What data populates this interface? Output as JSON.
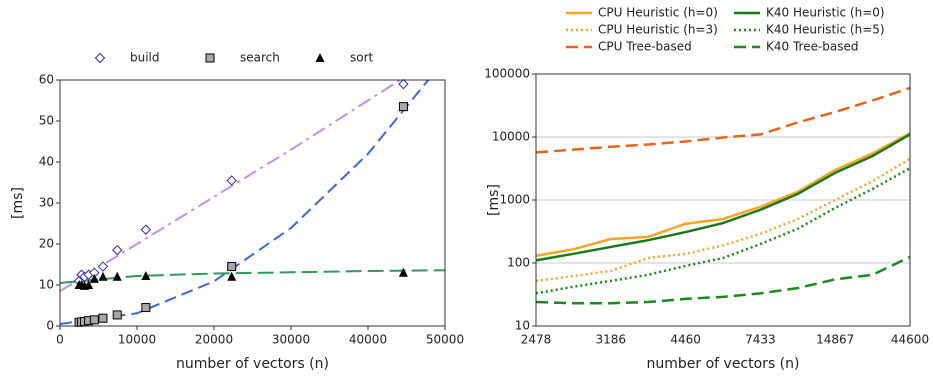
{
  "chart_data": [
    {
      "type": "scatter",
      "xlabel": "number of vectors (n)",
      "ylabel": "[ms]",
      "xlim": [
        0,
        50000
      ],
      "xticks": [
        0,
        10000,
        20000,
        30000,
        40000,
        50000
      ],
      "ylim": [
        0,
        60
      ],
      "yticks": [
        0,
        10,
        20,
        30,
        40,
        50,
        60
      ],
      "legend": "top",
      "series": [
        {
          "name": "build",
          "color": "#2b2bb8",
          "marker": "diamond",
          "x": [
            2478,
            2787,
            3186,
            3717,
            4460,
            5575,
            7433,
            11150,
            22300,
            44600
          ],
          "values": [
            11,
            12.5,
            12,
            12.5,
            13,
            14.5,
            18.5,
            23.5,
            35.5,
            59
          ],
          "fit": {
            "color": "#c08ff0",
            "dash": "dashdot",
            "x": [
              0,
              10000,
              20000,
              30000,
              40000,
              45000
            ],
            "values": [
              8.5,
              20,
              31.5,
              43,
              55,
              61
            ]
          }
        },
        {
          "name": "search",
          "color": "#a8a8a8",
          "marker": "square",
          "x": [
            2478,
            2787,
            3186,
            3717,
            4460,
            5575,
            7433,
            11150,
            22300,
            44600
          ],
          "values": [
            0.9,
            1,
            1.1,
            1.3,
            1.5,
            1.9,
            2.7,
            4.5,
            14.5,
            53.5
          ],
          "fit": {
            "color": "#3a66e0",
            "dash": "dashed",
            "x": [
              0,
              10000,
              20000,
              30000,
              40000,
              48000
            ],
            "values": [
              0.5,
              3.1,
              10.9,
              23.9,
              42,
              60.4
            ]
          }
        },
        {
          "name": "sort",
          "color": "#000000",
          "marker": "triangle",
          "x": [
            2478,
            2787,
            3186,
            3717,
            4460,
            5575,
            7433,
            11150,
            22300,
            44600
          ],
          "values": [
            10,
            10,
            9.8,
            10,
            11.5,
            12,
            12,
            12.2,
            12,
            13
          ],
          "fit": {
            "color": "#2e9a60",
            "dash": "longdash",
            "x": [
              0,
              10000,
              20000,
              30000,
              40000,
              50000
            ],
            "values": [
              10.5,
              12.2,
              12.8,
              13.1,
              13.4,
              13.6
            ]
          }
        }
      ]
    },
    {
      "type": "line",
      "xlabel": "number of vectors (n)",
      "ylabel": "[ms]",
      "categories": [
        "2478",
        null,
        "3186",
        null,
        "4460",
        null,
        "7433",
        null,
        "14867",
        null,
        "44600"
      ],
      "ylim": [
        10,
        100000
      ],
      "yticks": [
        10,
        100,
        1000,
        10000,
        100000
      ],
      "log_y": true,
      "grid": true,
      "legend": "top",
      "series": [
        {
          "name": "CPU Heuristic (h=0)",
          "color": "#f5a623",
          "dash": "solid",
          "values": [
            130,
            165,
            240,
            260,
            420,
            500,
            780,
            1350,
            3000,
            5500,
            11500
          ]
        },
        {
          "name": "K40 Heuristic (h=0)",
          "color": "#1a7a1a",
          "dash": "solid",
          "values": [
            110,
            140,
            180,
            230,
            310,
            430,
            700,
            1250,
            2700,
            5000,
            11000
          ]
        },
        {
          "name": "CPU Heuristic (h=3)",
          "color": "#f5a623",
          "dash": "dotted",
          "values": [
            52,
            62,
            75,
            120,
            140,
            190,
            290,
            500,
            1000,
            2000,
            4500
          ]
        },
        {
          "name": "K40 Heuristic (h=5)",
          "color": "#1a8a1a",
          "dash": "dotted",
          "values": [
            33,
            42,
            52,
            65,
            90,
            120,
            200,
            350,
            750,
            1500,
            3200
          ]
        },
        {
          "name": "CPU Tree-based",
          "color": "#e8641c",
          "dash": "dashed",
          "values": [
            5700,
            6300,
            7000,
            7600,
            8500,
            9800,
            11000,
            17000,
            25000,
            38000,
            60000
          ]
        },
        {
          "name": "K40 Tree-based",
          "color": "#1a8a1a",
          "dash": "dashed",
          "values": [
            24,
            23,
            23,
            24,
            27,
            29,
            33,
            40,
            55,
            65,
            125
          ]
        }
      ]
    }
  ]
}
